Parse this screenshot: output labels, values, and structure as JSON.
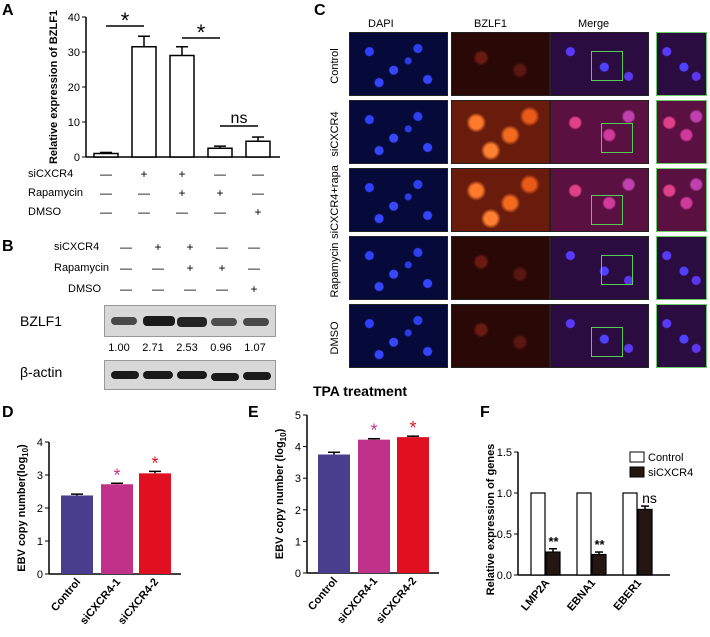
{
  "panels": {
    "A": "A",
    "B": "B",
    "C": "C",
    "D": "D",
    "E": "E",
    "F": "F"
  },
  "rows3": [
    "siCXCR4",
    "Rapamycin",
    "DMSO"
  ],
  "signs": {
    "siCXCR4": [
      "—",
      "+",
      "+",
      "—",
      "—"
    ],
    "Rapamycin": [
      "—",
      "—",
      "+",
      "+",
      "—"
    ],
    "DMSO": [
      "—",
      "—",
      "—",
      "—",
      "+"
    ]
  },
  "chart_A": {
    "type": "bar",
    "ylabel": "Relative expression of BZLF1",
    "ylim": [
      0,
      40
    ],
    "yticks": [
      "0",
      "10",
      "20",
      "30",
      "40"
    ],
    "values": [
      1,
      31.5,
      29,
      2.5,
      4.5
    ],
    "errors": [
      0.3,
      3,
      2.5,
      0.6,
      1.2
    ],
    "sig": [
      "*",
      "*",
      "ns"
    ]
  },
  "blot": {
    "labels": [
      "BZLF1",
      "β-actin"
    ],
    "densities": [
      "1.00",
      "2.71",
      "2.53",
      "0.96",
      "1.07"
    ],
    "bzlf1_intensity": [
      0.55,
      1,
      0.9,
      0.5,
      0.55
    ]
  },
  "panelC": {
    "columns": [
      "DAPI",
      "BZLF1",
      "Merge"
    ],
    "rows": [
      "Control",
      "siCXCR4",
      "siCXCR4+rapa",
      "Rapamycin",
      "DMSO"
    ],
    "bzlf1_level": [
      "weak",
      "strong",
      "strong",
      "weak",
      "weak"
    ]
  },
  "chart_data": [
    {
      "type": "bar",
      "title": "",
      "categories": [
        "Control",
        "siCXCR4-1",
        "siCXCR4-2"
      ],
      "values": [
        2.38,
        2.72,
        3.05
      ],
      "errors": [
        0.04,
        0.03,
        0.06
      ],
      "colors": [
        "#4a3f8f",
        "#c0328a",
        "#e01020"
      ],
      "ylabel": "EBV copy number(log10)",
      "ylim": [
        0,
        4
      ],
      "yticks": [
        "0",
        "1",
        "2",
        "3",
        "4"
      ],
      "sig": [
        "",
        "*",
        "*"
      ]
    },
    {
      "type": "bar",
      "title": "TPA treatment",
      "categories": [
        "Control",
        "siCXCR4-1",
        "siCXCR4-2"
      ],
      "values": [
        3.75,
        4.22,
        4.3
      ],
      "errors": [
        0.07,
        0.03,
        0.03
      ],
      "colors": [
        "#4a3f8f",
        "#c0328a",
        "#e01020"
      ],
      "ylabel": "EBV copy number (log10)",
      "ylim": [
        0,
        5
      ],
      "yticks": [
        "0",
        "1",
        "2",
        "3",
        "4",
        "5"
      ],
      "sig": [
        "",
        "*",
        "*"
      ]
    },
    {
      "type": "bar",
      "title": "",
      "categories": [
        "LMP2A",
        "EBNA1",
        "EBER1"
      ],
      "series": [
        {
          "name": "Control",
          "values": [
            1,
            1,
            1
          ],
          "errors": [
            0,
            0,
            0
          ]
        },
        {
          "name": "siCXCR4",
          "values": [
            0.28,
            0.25,
            0.8
          ],
          "errors": [
            0.04,
            0.03,
            0.04
          ]
        }
      ],
      "ylabel": "Relative expression of genes",
      "ylim": [
        0,
        1.5
      ],
      "yticks": [
        "0.0",
        "0.5",
        "1.0",
        "1.5"
      ],
      "sig": [
        "**",
        "**",
        "ns"
      ],
      "legend": "top-right"
    }
  ]
}
